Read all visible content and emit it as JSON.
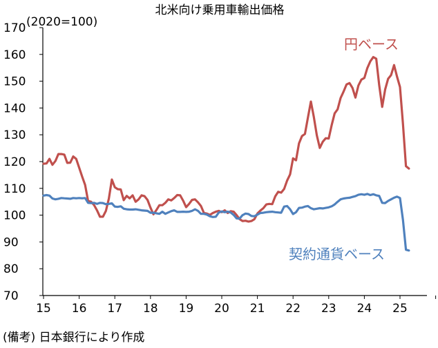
{
  "chart_data": {
    "type": "line",
    "title": "北米向け乗用車輸出価格",
    "unit_label": "(2020=100)",
    "source_note": "(備考) 日本銀行により作成",
    "x_tick_labels": [
      "15",
      "16",
      "17",
      "18",
      "19",
      "20",
      "21",
      "22",
      "23",
      "24",
      "25"
    ],
    "x_start_year": 2015,
    "xlim": [
      2015,
      2026
    ],
    "ylim": [
      70,
      170
    ],
    "y_ticks": [
      70,
      80,
      90,
      100,
      110,
      120,
      130,
      140,
      150,
      160,
      170
    ],
    "grid": false,
    "axis_color": "#000000",
    "series": [
      {
        "name": "円ベース",
        "color": "#C0504D",
        "values": [
          119.2,
          119.3,
          121.0,
          118.8,
          120.2,
          122.8,
          122.8,
          122.6,
          119.5,
          119.6,
          121.9,
          121.0,
          117.7,
          114.4,
          111.3,
          105.3,
          105.0,
          103.8,
          101.8,
          99.4,
          99.4,
          101.6,
          106.2,
          113.3,
          110.4,
          109.7,
          109.6,
          105.6,
          107.2,
          106.3,
          107.4,
          105.0,
          105.9,
          107.4,
          107.1,
          105.7,
          102.8,
          100.3,
          101.9,
          103.7,
          103.7,
          104.6,
          105.9,
          105.5,
          106.4,
          107.5,
          107.4,
          105.4,
          103.0,
          104.2,
          105.7,
          105.9,
          104.8,
          103.4,
          100.8,
          100.6,
          100.1,
          100.8,
          101.3,
          101.6,
          101.1,
          101.8,
          100.8,
          101.5,
          101.3,
          100.0,
          98.5,
          97.8,
          97.9,
          97.6,
          97.8,
          98.5,
          100.6,
          101.7,
          102.6,
          104.0,
          104.2,
          104.1,
          107.0,
          108.7,
          108.4,
          109.8,
          112.9,
          115.2,
          121.2,
          120.5,
          126.8,
          129.5,
          130.3,
          136.4,
          142.4,
          136.6,
          129.8,
          125.1,
          127.4,
          128.7,
          128.6,
          133.6,
          138.0,
          139.5,
          143.7,
          146.1,
          148.8,
          149.3,
          147.5,
          143.9,
          148.4,
          150.6,
          151.2,
          154.9,
          157.4,
          159.0,
          158.4,
          148.5,
          140.4,
          146.9,
          150.9,
          152.3,
          156.0,
          151.7,
          147.8,
          134.0,
          118.3,
          117.4
        ]
      },
      {
        "name": "契約通貨ベース",
        "color": "#4F81BD",
        "values": [
          107.3,
          107.5,
          107.3,
          106.2,
          105.9,
          106.1,
          106.4,
          106.3,
          106.2,
          106.1,
          106.4,
          106.3,
          106.4,
          106.3,
          106.4,
          104.6,
          104.5,
          104.6,
          104.2,
          104.6,
          104.5,
          104.1,
          104.2,
          104.4,
          103.2,
          103.1,
          103.3,
          102.4,
          102.2,
          102.1,
          102.1,
          102.2,
          102.0,
          101.8,
          101.7,
          101.6,
          100.9,
          100.9,
          100.7,
          100.5,
          101.3,
          100.5,
          101.0,
          101.5,
          101.8,
          101.2,
          101.2,
          101.3,
          101.2,
          101.3,
          101.6,
          102.2,
          101.6,
          100.5,
          100.5,
          100.2,
          99.6,
          99.3,
          99.4,
          101.0,
          101.4,
          101.1,
          101.3,
          101.0,
          100.1,
          98.8,
          98.7,
          100.0,
          100.6,
          100.4,
          99.7,
          99.6,
          100.2,
          100.8,
          100.9,
          101.1,
          101.2,
          101.3,
          101.1,
          101.0,
          100.9,
          103.2,
          103.4,
          102.2,
          100.4,
          101.1,
          102.7,
          102.8,
          103.2,
          103.4,
          102.6,
          102.2,
          102.4,
          102.6,
          102.5,
          102.7,
          102.9,
          103.3,
          104.0,
          105.0,
          105.9,
          106.2,
          106.4,
          106.5,
          106.8,
          107.1,
          107.6,
          107.8,
          107.6,
          107.9,
          107.5,
          107.8,
          107.4,
          107.2,
          104.6,
          104.5,
          105.3,
          105.9,
          106.5,
          106.9,
          106.4,
          98.2,
          87.1,
          86.8
        ]
      }
    ]
  }
}
